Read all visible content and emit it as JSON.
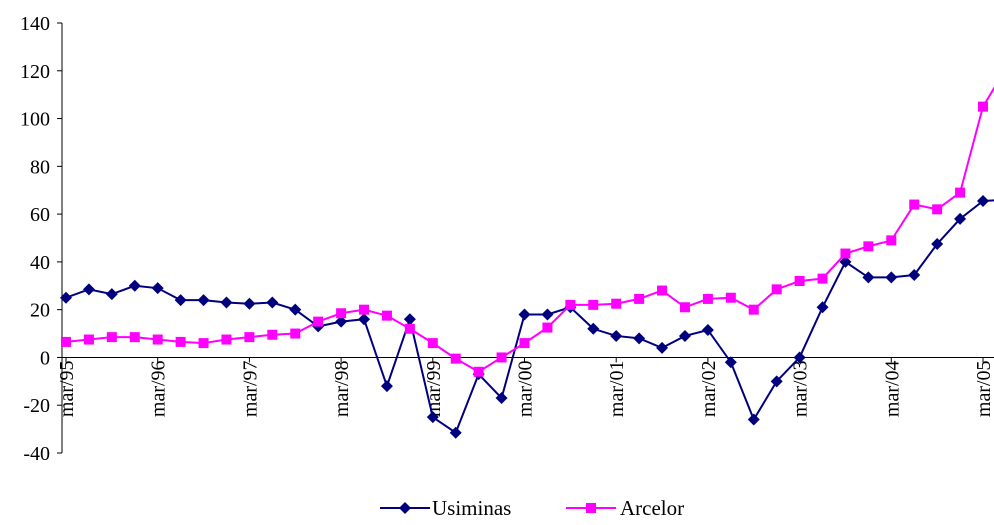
{
  "chart_data": {
    "type": "line",
    "title": "",
    "xlabel": "",
    "ylabel": "",
    "ylim": [
      -40,
      140
    ],
    "yticks": [
      -40,
      -20,
      0,
      20,
      40,
      60,
      80,
      100,
      120,
      140
    ],
    "xtick_labels": [
      "mar/95",
      "mar/96",
      "mar/97",
      "mar/98",
      "mar/99",
      "mar/00",
      "mar/01",
      "mar/02",
      "mar/03",
      "mar/04",
      "mar/05"
    ],
    "grid": false,
    "legend_position": "bottom-center",
    "series": [
      {
        "name": "Usiminas",
        "color": "#00007f",
        "marker": "diamond",
        "values": [
          25,
          28.5,
          26.5,
          30,
          29,
          24,
          24,
          23,
          22.5,
          23,
          20,
          13,
          15,
          16,
          -12,
          16,
          -25,
          -31.5,
          -7,
          -17,
          18,
          18,
          21,
          12,
          9,
          8,
          4,
          9,
          11.5,
          -2,
          -26,
          -10,
          0,
          21,
          40,
          33.5,
          33.5,
          34.5,
          47.5,
          58,
          65.5,
          66
        ]
      },
      {
        "name": "Arcelor",
        "color": "#ff00ff",
        "marker": "square",
        "values": [
          6.5,
          7.5,
          8.5,
          8.5,
          7.5,
          6.5,
          6,
          7.5,
          8.5,
          9.5,
          10,
          15,
          18.5,
          20,
          17.5,
          12,
          6,
          -0.5,
          -6,
          0,
          6,
          12.5,
          22,
          22,
          22.5,
          24.5,
          28,
          21,
          24.5,
          25,
          20,
          28.5,
          32,
          33,
          43.5,
          46.5,
          49,
          64,
          62,
          69,
          105,
          121
        ]
      }
    ]
  }
}
